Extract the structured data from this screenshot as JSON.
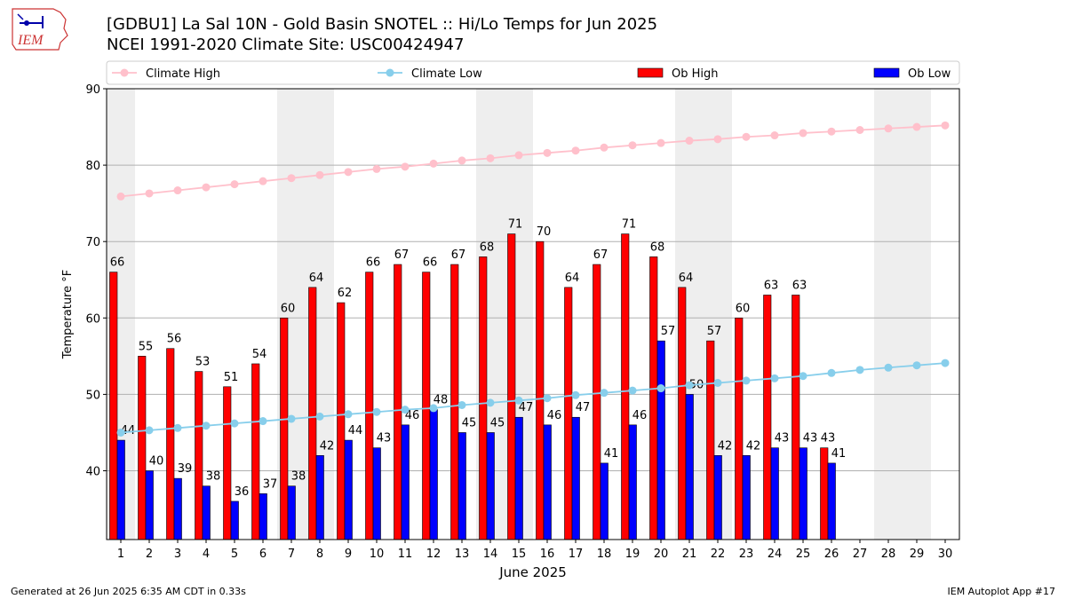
{
  "title_line1": "[GDBU1] La Sal 10N - Gold Basin SNOTEL :: Hi/Lo Temps for Jun 2025",
  "title_line2": "NCEI 1991-2020 Climate Site: USC00424947",
  "logo_text": "IEM",
  "footer_left": "Generated at 26 Jun 2025 6:35 AM CDT in 0.33s",
  "footer_right": "IEM Autoplot App #17",
  "colors": {
    "ob_high": "#ff0000",
    "ob_low": "#0000ff",
    "climate_high": "#ffc0cb",
    "climate_low": "#87ceeb",
    "weekend_shade": "#eeeeee",
    "grid": "#b0b0b0"
  },
  "chart_data": {
    "type": "bar",
    "xlabel": "June 2025",
    "ylabel": "Temperature °F",
    "ylim": [
      31,
      90
    ],
    "yticks": [
      40,
      50,
      60,
      70,
      80,
      90
    ],
    "grid": "horizontal",
    "legend_placement": "top",
    "legend": [
      "Climate High",
      "Climate Low",
      "Ob High",
      "Ob Low"
    ],
    "days": [
      1,
      2,
      3,
      4,
      5,
      6,
      7,
      8,
      9,
      10,
      11,
      12,
      13,
      14,
      15,
      16,
      17,
      18,
      19,
      20,
      21,
      22,
      23,
      24,
      25,
      26,
      27,
      28,
      29,
      30
    ],
    "shaded_weekend_ranges": [
      [
        1,
        1
      ],
      [
        7,
        8
      ],
      [
        14,
        15
      ],
      [
        21,
        22
      ],
      [
        28,
        29
      ]
    ],
    "series": [
      {
        "name": "Ob High",
        "kind": "bar",
        "values": [
          66,
          55,
          56,
          53,
          51,
          54,
          60,
          64,
          62,
          66,
          67,
          66,
          67,
          68,
          71,
          70,
          64,
          67,
          71,
          68,
          64,
          57,
          60,
          63,
          63,
          43
        ]
      },
      {
        "name": "Ob Low",
        "kind": "bar",
        "values": [
          44,
          40,
          39,
          38,
          36,
          37,
          38,
          42,
          44,
          43,
          46,
          48,
          45,
          45,
          47,
          46,
          47,
          41,
          46,
          57,
          50,
          42,
          42,
          43,
          43,
          41
        ]
      },
      {
        "name": "Climate High",
        "kind": "line",
        "values": [
          75.9,
          76.3,
          76.7,
          77.1,
          77.5,
          77.9,
          78.3,
          78.7,
          79.1,
          79.5,
          79.8,
          80.2,
          80.6,
          80.9,
          81.3,
          81.6,
          81.9,
          82.3,
          82.6,
          82.9,
          83.2,
          83.4,
          83.7,
          83.9,
          84.2,
          84.4,
          84.6,
          84.8,
          85.0,
          85.2
        ]
      },
      {
        "name": "Climate Low",
        "kind": "line",
        "values": [
          45.0,
          45.3,
          45.6,
          45.9,
          46.2,
          46.5,
          46.8,
          47.1,
          47.4,
          47.7,
          48.0,
          48.2,
          48.6,
          48.9,
          49.2,
          49.5,
          49.9,
          50.2,
          50.5,
          50.8,
          51.2,
          51.5,
          51.8,
          52.1,
          52.4,
          52.8,
          53.2,
          53.5,
          53.8,
          54.1
        ]
      }
    ]
  }
}
